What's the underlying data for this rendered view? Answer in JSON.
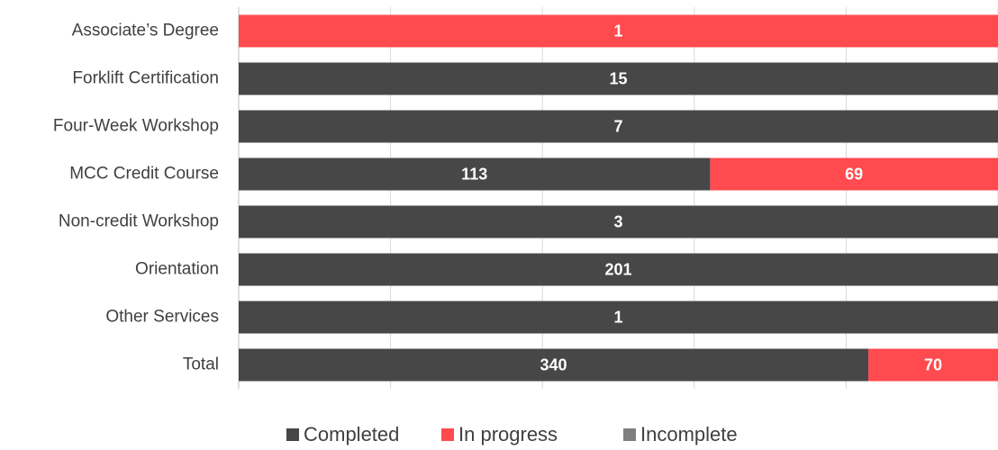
{
  "chart_data": {
    "type": "bar_stacked_percent",
    "orientation": "horizontal",
    "categories": [
      "Associate’s Degree",
      "Forklift Certification",
      "Four-Week Workshop",
      "MCC Credit Course",
      "Non-credit Workshop",
      "Orientation",
      "Other Services",
      "Total"
    ],
    "series": [
      {
        "name": "Completed",
        "color": "#474747",
        "values": [
          0,
          15,
          7,
          113,
          3,
          201,
          1,
          340
        ]
      },
      {
        "name": "In progress",
        "color": "#ff4a4f",
        "values": [
          1,
          0,
          0,
          69,
          0,
          0,
          0,
          70
        ]
      },
      {
        "name": "Incomplete",
        "color": "#7f7f7f",
        "values": [
          0,
          0,
          0,
          0,
          0,
          0,
          0,
          0
        ]
      }
    ],
    "xlim": [
      0,
      100
    ],
    "xticks": [
      0,
      20,
      40,
      60,
      80,
      100
    ],
    "grid": true,
    "legend": "bottom"
  }
}
